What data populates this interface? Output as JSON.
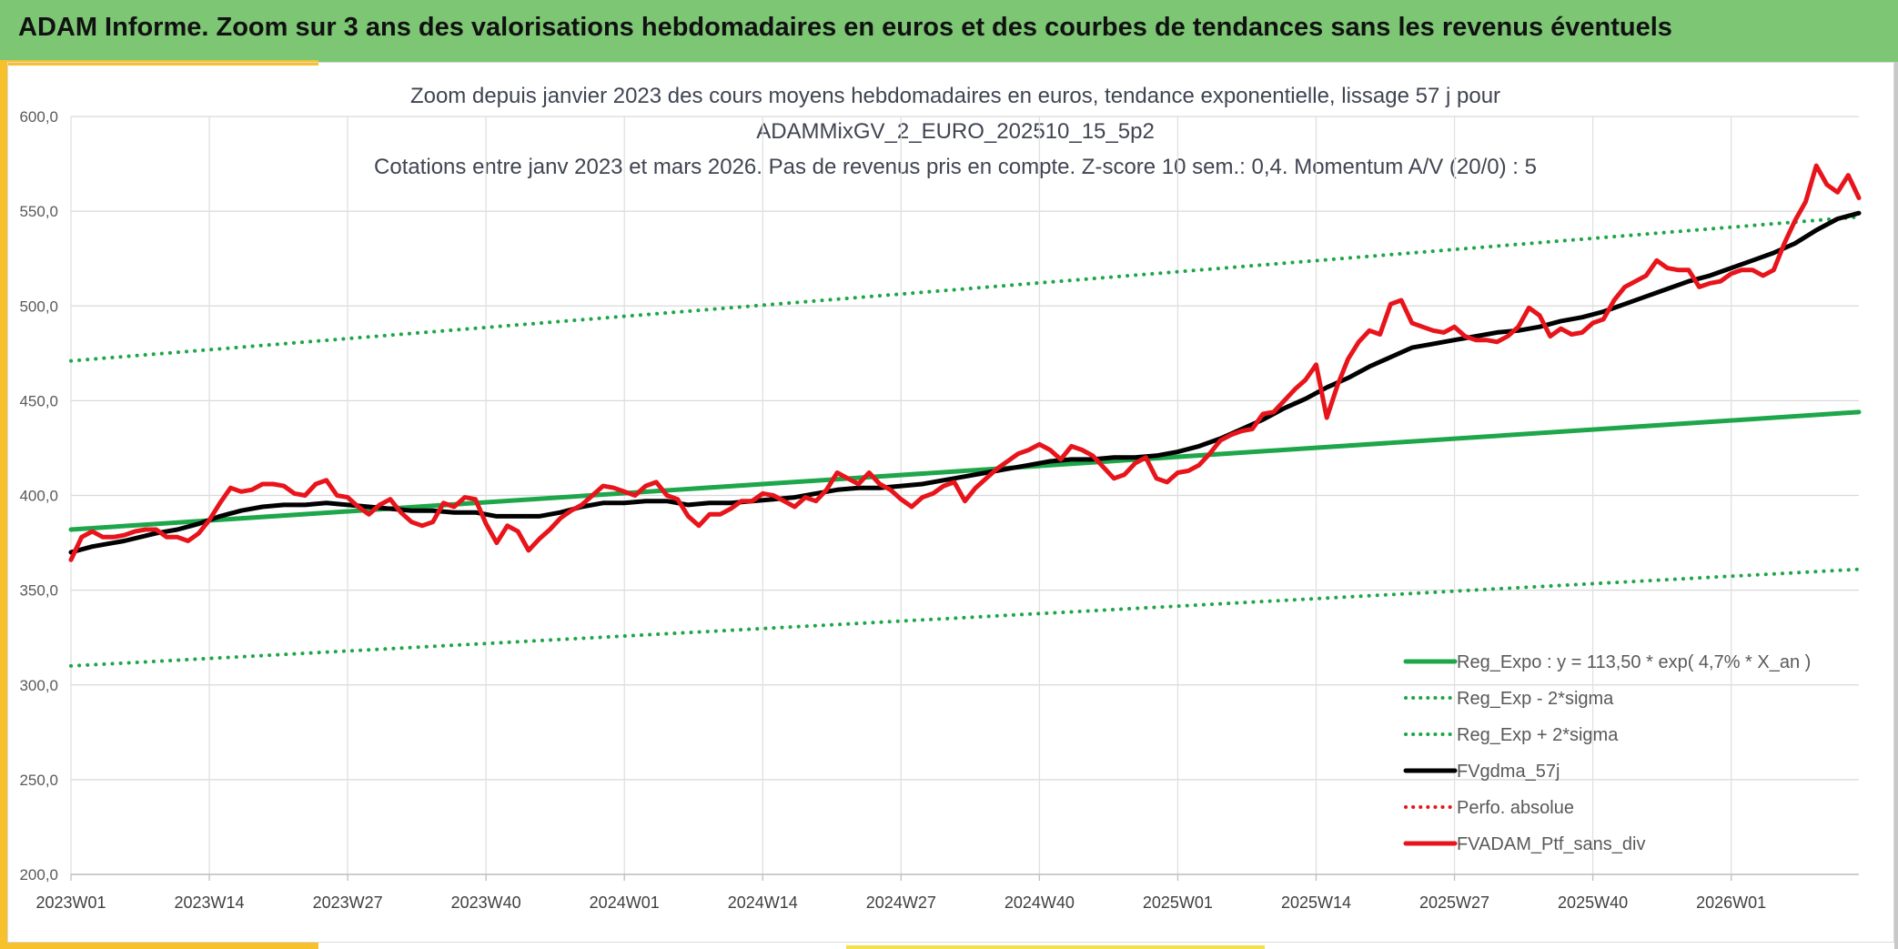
{
  "banner": {
    "title": "ADAM Informe. Zoom sur 3 ans des valorisations hebdomadaires en euros et des courbes de tendances sans les revenus éventuels"
  },
  "chart_data": {
    "type": "line",
    "title_lines": [
      "Zoom depuis janvier 2023 des cours moyens hebdomadaires en euros, tendance exponentielle, lissage 57 j pour",
      "ADAMMixGV_2_EURO_202510_15_5p2",
      "Cotations entre janv 2023 et mars 2026. Pas de revenus pris en compte. Z-score 10 sem.: 0,4. Momentum A/V (20/0) : 5"
    ],
    "ylim": [
      200,
      600
    ],
    "yticks": [
      "200,0",
      "250,0",
      "300,0",
      "350,0",
      "400,0",
      "450,0",
      "500,0",
      "550,0",
      "600,0"
    ],
    "ytick_values": [
      200,
      250,
      300,
      350,
      400,
      450,
      500,
      550,
      600
    ],
    "xticks": [
      "2023W01",
      "2023W14",
      "2023W27",
      "2023W40",
      "2024W01",
      "2024W14",
      "2024W27",
      "2024W40",
      "2025W01",
      "2025W14",
      "2025W27",
      "2025W40",
      "2026W01"
    ],
    "xtick_index": [
      0,
      13,
      26,
      39,
      52,
      65,
      78,
      91,
      104,
      117,
      130,
      143,
      156
    ],
    "x_count": 169,
    "grid": true,
    "legend_position": "bottom-right",
    "series": [
      {
        "name": "Reg_Expo : y = 113,50 * exp( 4,7% *  X_an )",
        "color": "#1ea64a",
        "style": "solid",
        "width": 5,
        "points": [
          [
            0,
            382
          ],
          [
            168,
            444
          ]
        ]
      },
      {
        "name": "Reg_Exp - 2*sigma",
        "color": "#1ea64a",
        "style": "dotted",
        "width": 4,
        "points": [
          [
            0,
            310
          ],
          [
            168,
            361
          ]
        ]
      },
      {
        "name": "Reg_Exp + 2*sigma",
        "color": "#1ea64a",
        "style": "dotted",
        "width": 4,
        "points": [
          [
            0,
            471
          ],
          [
            168,
            547
          ]
        ]
      },
      {
        "name": "FVgdma_57j",
        "color": "#000000",
        "style": "solid",
        "width": 5,
        "points": [
          [
            0,
            370
          ],
          [
            2,
            373
          ],
          [
            5,
            376
          ],
          [
            8,
            380
          ],
          [
            10,
            382
          ],
          [
            12,
            385
          ],
          [
            14,
            389
          ],
          [
            16,
            392
          ],
          [
            18,
            394
          ],
          [
            20,
            395
          ],
          [
            22,
            395
          ],
          [
            24,
            396
          ],
          [
            26,
            395
          ],
          [
            28,
            394
          ],
          [
            30,
            393
          ],
          [
            32,
            392
          ],
          [
            34,
            392
          ],
          [
            36,
            391
          ],
          [
            38,
            391
          ],
          [
            40,
            389
          ],
          [
            42,
            389
          ],
          [
            44,
            389
          ],
          [
            46,
            391
          ],
          [
            48,
            394
          ],
          [
            50,
            396
          ],
          [
            52,
            396
          ],
          [
            54,
            397
          ],
          [
            56,
            397
          ],
          [
            58,
            395
          ],
          [
            60,
            396
          ],
          [
            62,
            396
          ],
          [
            64,
            397
          ],
          [
            66,
            398
          ],
          [
            68,
            399
          ],
          [
            70,
            401
          ],
          [
            72,
            403
          ],
          [
            74,
            404
          ],
          [
            76,
            404
          ],
          [
            78,
            405
          ],
          [
            80,
            406
          ],
          [
            82,
            408
          ],
          [
            84,
            410
          ],
          [
            86,
            412
          ],
          [
            88,
            414
          ],
          [
            90,
            416
          ],
          [
            92,
            418
          ],
          [
            94,
            419
          ],
          [
            96,
            419
          ],
          [
            98,
            420
          ],
          [
            100,
            420
          ],
          [
            102,
            421
          ],
          [
            104,
            423
          ],
          [
            106,
            426
          ],
          [
            108,
            430
          ],
          [
            110,
            435
          ],
          [
            112,
            440
          ],
          [
            114,
            446
          ],
          [
            116,
            451
          ],
          [
            118,
            457
          ],
          [
            120,
            462
          ],
          [
            122,
            468
          ],
          [
            124,
            473
          ],
          [
            126,
            478
          ],
          [
            128,
            480
          ],
          [
            130,
            482
          ],
          [
            132,
            484
          ],
          [
            134,
            486
          ],
          [
            136,
            487
          ],
          [
            138,
            489
          ],
          [
            140,
            492
          ],
          [
            142,
            494
          ],
          [
            144,
            497
          ],
          [
            146,
            501
          ],
          [
            148,
            505
          ],
          [
            150,
            509
          ],
          [
            152,
            513
          ],
          [
            154,
            516
          ],
          [
            156,
            520
          ],
          [
            158,
            524
          ],
          [
            160,
            528
          ],
          [
            162,
            533
          ],
          [
            164,
            540
          ],
          [
            166,
            546
          ],
          [
            168,
            549
          ]
        ]
      },
      {
        "name": "Perfo. absolue",
        "color": "#e8141b",
        "style": "dotted",
        "width": 4,
        "points": []
      },
      {
        "name": "FVADAM_Ptf_sans_div",
        "color": "#e8141b",
        "style": "solid",
        "width": 5,
        "points": [
          [
            0,
            366
          ],
          [
            1,
            378
          ],
          [
            2,
            381
          ],
          [
            3,
            378
          ],
          [
            4,
            378
          ],
          [
            5,
            379
          ],
          [
            6,
            381
          ],
          [
            7,
            382
          ],
          [
            8,
            382
          ],
          [
            9,
            378
          ],
          [
            10,
            378
          ],
          [
            11,
            376
          ],
          [
            12,
            380
          ],
          [
            13,
            387
          ],
          [
            14,
            396
          ],
          [
            15,
            404
          ],
          [
            16,
            402
          ],
          [
            17,
            403
          ],
          [
            18,
            406
          ],
          [
            19,
            406
          ],
          [
            20,
            405
          ],
          [
            21,
            401
          ],
          [
            22,
            400
          ],
          [
            23,
            406
          ],
          [
            24,
            408
          ],
          [
            25,
            400
          ],
          [
            26,
            399
          ],
          [
            27,
            394
          ],
          [
            28,
            390
          ],
          [
            29,
            395
          ],
          [
            30,
            398
          ],
          [
            31,
            391
          ],
          [
            32,
            386
          ],
          [
            33,
            384
          ],
          [
            34,
            386
          ],
          [
            35,
            396
          ],
          [
            36,
            394
          ],
          [
            37,
            399
          ],
          [
            38,
            398
          ],
          [
            39,
            385
          ],
          [
            40,
            375
          ],
          [
            41,
            384
          ],
          [
            42,
            381
          ],
          [
            43,
            371
          ],
          [
            44,
            377
          ],
          [
            45,
            382
          ],
          [
            46,
            388
          ],
          [
            47,
            392
          ],
          [
            48,
            395
          ],
          [
            49,
            400
          ],
          [
            50,
            405
          ],
          [
            51,
            404
          ],
          [
            52,
            402
          ],
          [
            53,
            400
          ],
          [
            54,
            405
          ],
          [
            55,
            407
          ],
          [
            56,
            400
          ],
          [
            57,
            398
          ],
          [
            58,
            389
          ],
          [
            59,
            384
          ],
          [
            60,
            390
          ],
          [
            61,
            390
          ],
          [
            62,
            393
          ],
          [
            63,
            397
          ],
          [
            64,
            397
          ],
          [
            65,
            401
          ],
          [
            66,
            400
          ],
          [
            67,
            397
          ],
          [
            68,
            394
          ],
          [
            69,
            399
          ],
          [
            70,
            397
          ],
          [
            71,
            403
          ],
          [
            72,
            412
          ],
          [
            73,
            409
          ],
          [
            74,
            406
          ],
          [
            75,
            412
          ],
          [
            76,
            406
          ],
          [
            77,
            403
          ],
          [
            78,
            398
          ],
          [
            79,
            394
          ],
          [
            80,
            399
          ],
          [
            81,
            401
          ],
          [
            82,
            405
          ],
          [
            83,
            407
          ],
          [
            84,
            397
          ],
          [
            85,
            404
          ],
          [
            86,
            409
          ],
          [
            87,
            414
          ],
          [
            88,
            418
          ],
          [
            89,
            422
          ],
          [
            90,
            424
          ],
          [
            91,
            427
          ],
          [
            92,
            424
          ],
          [
            93,
            419
          ],
          [
            94,
            426
          ],
          [
            95,
            424
          ],
          [
            96,
            421
          ],
          [
            97,
            415
          ],
          [
            98,
            409
          ],
          [
            99,
            411
          ],
          [
            100,
            417
          ],
          [
            101,
            420
          ],
          [
            102,
            409
          ],
          [
            103,
            407
          ],
          [
            104,
            412
          ],
          [
            105,
            413
          ],
          [
            106,
            416
          ],
          [
            107,
            422
          ],
          [
            108,
            429
          ],
          [
            109,
            432
          ],
          [
            110,
            434
          ],
          [
            111,
            435
          ],
          [
            112,
            443
          ],
          [
            113,
            444
          ],
          [
            114,
            450
          ],
          [
            115,
            456
          ],
          [
            116,
            461
          ],
          [
            117,
            469
          ],
          [
            118,
            441
          ],
          [
            119,
            458
          ],
          [
            120,
            472
          ],
          [
            121,
            481
          ],
          [
            122,
            487
          ],
          [
            123,
            485
          ],
          [
            124,
            501
          ],
          [
            125,
            503
          ],
          [
            126,
            491
          ],
          [
            127,
            489
          ],
          [
            128,
            487
          ],
          [
            129,
            486
          ],
          [
            130,
            489
          ],
          [
            131,
            484
          ],
          [
            132,
            482
          ],
          [
            133,
            482
          ],
          [
            134,
            481
          ],
          [
            135,
            484
          ],
          [
            136,
            489
          ],
          [
            137,
            499
          ],
          [
            138,
            495
          ],
          [
            139,
            484
          ],
          [
            140,
            488
          ],
          [
            141,
            485
          ],
          [
            142,
            486
          ],
          [
            143,
            491
          ],
          [
            144,
            493
          ],
          [
            145,
            503
          ],
          [
            146,
            510
          ],
          [
            147,
            513
          ],
          [
            148,
            516
          ],
          [
            149,
            524
          ],
          [
            150,
            520
          ],
          [
            151,
            519
          ],
          [
            152,
            519
          ],
          [
            153,
            510
          ],
          [
            154,
            512
          ],
          [
            155,
            513
          ],
          [
            156,
            517
          ],
          [
            157,
            519
          ],
          [
            158,
            519
          ],
          [
            159,
            516
          ],
          [
            160,
            519
          ],
          [
            161,
            533
          ],
          [
            162,
            545
          ],
          [
            163,
            555
          ],
          [
            164,
            574
          ],
          [
            165,
            564
          ],
          [
            166,
            560
          ],
          [
            167,
            569
          ],
          [
            168,
            557
          ]
        ]
      }
    ]
  }
}
